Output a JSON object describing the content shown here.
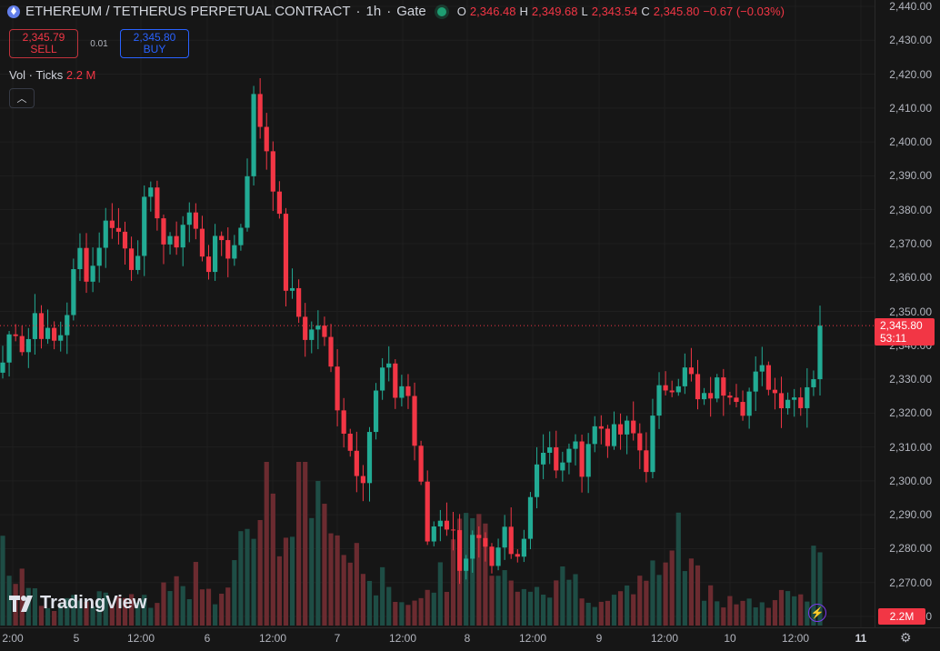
{
  "header": {
    "symbol": "ETHEREUM / TETHERUS PERPETUAL CONTRACT",
    "interval": "1h",
    "exchange": "Gate",
    "open_label": "O",
    "open": "2,346.48",
    "high_label": "H",
    "high": "2,349.68",
    "low_label": "L",
    "low": "2,343.54",
    "close_label": "C",
    "close": "2,345.80",
    "change": "−0.67 (−0.03%)"
  },
  "trade": {
    "sell_price": "2,345.79",
    "sell_label": "SELL",
    "spread": "0.01",
    "buy_price": "2,345.80",
    "buy_label": "BUY"
  },
  "volume_legend": {
    "label": "Vol · Ticks",
    "value": "2.2 M"
  },
  "logo_text": "TradingView",
  "price_tag": {
    "price": "2,345.80",
    "countdown": "53:11"
  },
  "volume_tag": "2.2M",
  "colors": {
    "up": "#22ab94",
    "down": "#f23645",
    "background": "#161616"
  },
  "icons": [
    "ethereum-coin-icon",
    "live-status-icon",
    "chevron-up-icon",
    "lightning-icon",
    "gear-icon"
  ],
  "chart_data": {
    "type": "candlestick",
    "ylim": [
      2260,
      2442
    ],
    "y_ticks": [
      "2,440.00",
      "2,430.00",
      "2,420.00",
      "2,410.00",
      "2,400.00",
      "2,390.00",
      "2,380.00",
      "2,370.00",
      "2,360.00",
      "2,350.00",
      "2,340.00",
      "2,330.00",
      "2,320.00",
      "2,310.00",
      "2,300.00",
      "2,290.00",
      "2,280.00",
      "2,270.00",
      "2,260.00"
    ],
    "x_ticks": [
      "2:00",
      "5",
      "12:00",
      "6",
      "12:00",
      "7",
      "12:00",
      "8",
      "12:00",
      "9",
      "12:00",
      "10",
      "12:00",
      "11"
    ],
    "current_price": 2345.8,
    "close_path": [
      2335,
      2348,
      2338,
      2350,
      2342,
      2340,
      2352,
      2368,
      2360,
      2373,
      2378,
      2370,
      2364,
      2380,
      2384,
      2366,
      2372,
      2380,
      2370,
      2364,
      2372,
      2366,
      2378,
      2412,
      2402,
      2386,
      2358,
      2350,
      2342,
      2347,
      2334,
      2320,
      2308,
      2302,
      2322,
      2334,
      2326,
      2330,
      2306,
      2282,
      2291,
      2287,
      2276,
      2282,
      2279,
      2270,
      2285,
      2273,
      2290,
      2306,
      2314,
      2298,
      2312,
      2304,
      2315,
      2316,
      2312,
      2315,
      2313,
      2305,
      2323,
      2330,
      2331,
      2332,
      2320,
      2327,
      2328,
      2329,
      2323,
      2329,
      2332,
      2325,
      2326,
      2324,
      2330,
      2345
    ],
    "volumes": [
      0.45,
      0.15,
      0.18,
      0.12,
      0.1,
      0.08,
      0.1,
      0.07,
      0.06,
      0.1,
      0.12,
      0.08,
      0.09,
      0.1,
      0.08,
      0.18,
      0.15,
      0.12,
      0.2,
      0.14,
      0.11,
      0.25,
      0.3,
      0.4,
      0.55,
      0.35,
      0.3,
      0.42,
      0.6,
      0.48,
      0.38,
      0.3,
      0.25,
      0.2,
      0.18,
      0.15,
      0.12,
      0.1,
      0.09,
      0.12,
      0.16,
      0.22,
      0.3,
      0.45,
      0.35,
      0.25,
      0.2,
      0.18,
      0.15,
      0.14,
      0.12,
      0.16,
      0.18,
      0.15,
      0.12,
      0.1,
      0.09,
      0.11,
      0.14,
      0.18,
      0.2,
      0.25,
      0.3,
      0.22,
      0.16,
      0.13,
      0.11,
      0.1,
      0.09,
      0.08,
      0.07,
      0.09,
      0.11,
      0.13,
      0.15,
      0.35
    ]
  }
}
